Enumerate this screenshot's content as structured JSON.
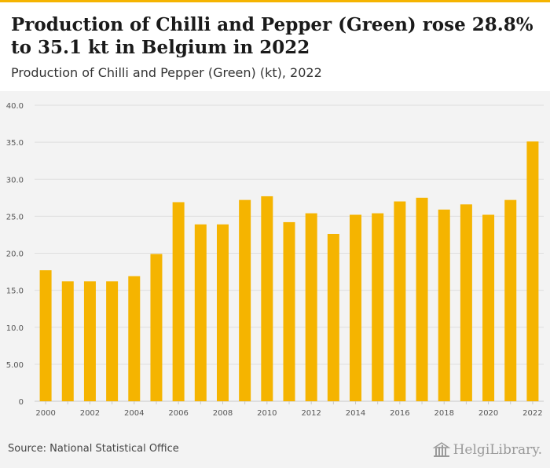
{
  "header": {
    "title": "Production of Chilli and Pepper (Green) rose 28.8% to 35.1 kt in Belgium in 2022",
    "subtitle": "Production of Chilli and Pepper (Green) (kt), 2022"
  },
  "footer": {
    "source": "Source: National Statistical Office",
    "logo_text": "HelgiLibrary."
  },
  "colors": {
    "bar": "#f5b400",
    "grid": "#dedede",
    "background": "#f3f3f3"
  },
  "chart_data": {
    "type": "bar",
    "title": "Production of Chilli and Pepper (Green) rose 28.8% to 35.1 kt in Belgium in 2022",
    "subtitle": "Production of Chilli and Pepper (Green) (kt), 2022",
    "categories": [
      "2000",
      "2001",
      "2002",
      "2003",
      "2004",
      "2005",
      "2006",
      "2007",
      "2008",
      "2009",
      "2010",
      "2011",
      "2012",
      "2013",
      "2014",
      "2015",
      "2016",
      "2017",
      "2018",
      "2019",
      "2020",
      "2021",
      "2022"
    ],
    "x_tick_labels": [
      "2000",
      "2002",
      "2004",
      "2006",
      "2008",
      "2010",
      "2012",
      "2014",
      "2016",
      "2018",
      "2020",
      "2022"
    ],
    "values": [
      17.7,
      16.2,
      16.2,
      16.2,
      16.9,
      19.9,
      26.9,
      23.9,
      23.9,
      27.2,
      27.7,
      24.2,
      25.4,
      22.6,
      25.2,
      25.4,
      27.0,
      27.5,
      25.9,
      26.6,
      25.2,
      27.2,
      35.1
    ],
    "y_tick_labels": [
      "0",
      "5.00",
      "10.0",
      "15.0",
      "20.0",
      "25.0",
      "30.0",
      "35.0",
      "40.0"
    ],
    "ylim": [
      0,
      40
    ],
    "grid": true
  }
}
